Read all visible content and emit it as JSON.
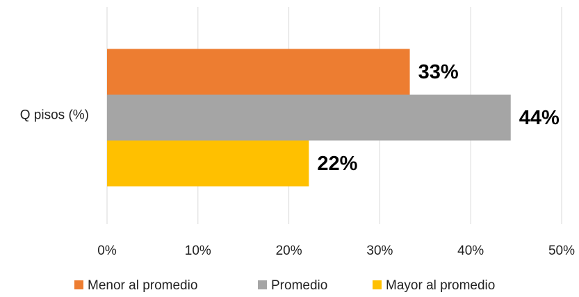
{
  "chart_data": {
    "type": "bar",
    "orientation": "horizontal",
    "categories": [
      "Q pisos (%)"
    ],
    "series": [
      {
        "name": "Menor al promedio",
        "color": "#ED7D31",
        "values": [
          33.3
        ],
        "value_labels": [
          "33%"
        ]
      },
      {
        "name": "Promedio",
        "color": "#A5A5A5",
        "values": [
          44.4
        ],
        "value_labels": [
          "44%"
        ]
      },
      {
        "name": "Mayor al promedio",
        "color": "#FFC000",
        "values": [
          22.2
        ],
        "value_labels": [
          "22%"
        ]
      }
    ],
    "xlim": [
      0,
      50
    ],
    "xticks": [
      {
        "value": 0,
        "label": "0%"
      },
      {
        "value": 10,
        "label": "10%"
      },
      {
        "value": 20,
        "label": "20%"
      },
      {
        "value": 30,
        "label": "30%"
      },
      {
        "value": 40,
        "label": "40%"
      },
      {
        "value": 50,
        "label": "50%"
      }
    ],
    "grid": true,
    "legend": "bottom"
  }
}
